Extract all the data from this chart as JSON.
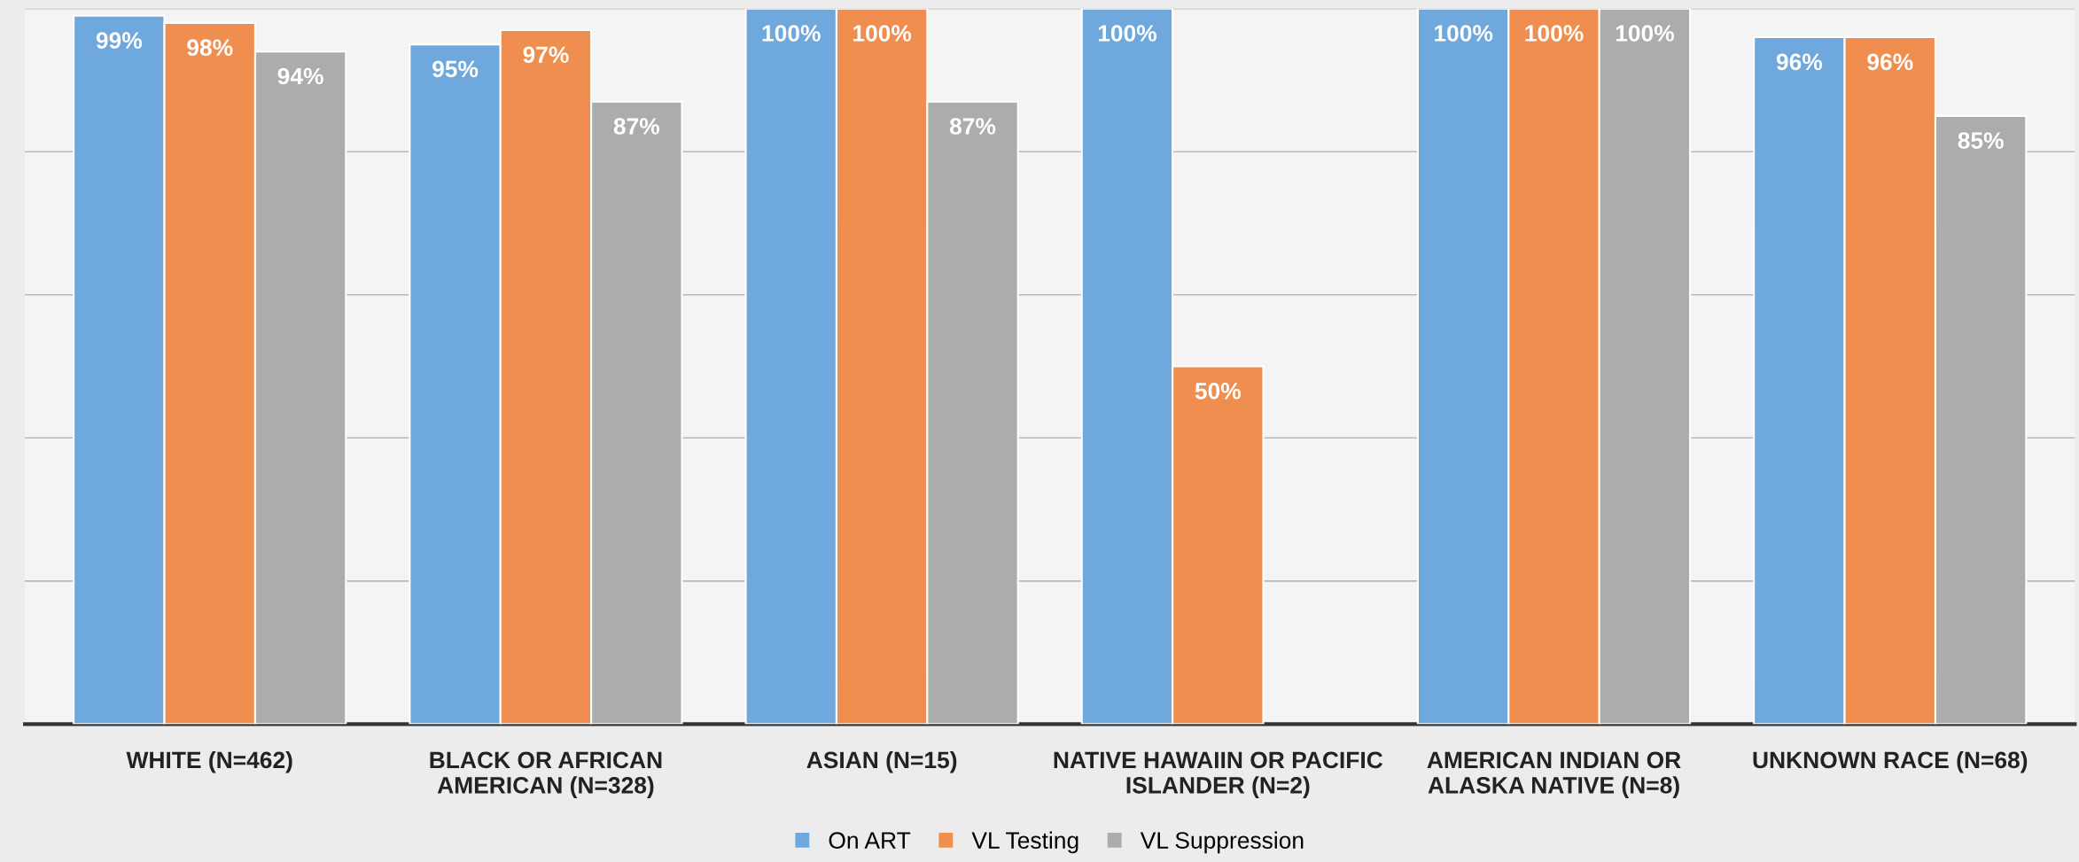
{
  "chart_data": {
    "type": "bar",
    "categories": [
      "WHITE (N=462)",
      "BLACK OR AFRICAN\nAMERICAN (N=328)",
      "ASIAN (N=15)",
      "NATIVE HAWAIIN OR PACIFIC\nISLANDER (N=2)",
      "AMERICAN INDIAN OR\nALASKA NATIVE (N=8)",
      "UNKNOWN RACE (N=68)"
    ],
    "series": [
      {
        "name": "On ART",
        "color": "#6fa8dc",
        "values": [
          99,
          95,
          100,
          100,
          100,
          96
        ],
        "value_labels": [
          "99%",
          "95%",
          "100%",
          "100%",
          "100%",
          "96%"
        ]
      },
      {
        "name": "VL Testing",
        "color": "#ef8e4e",
        "values": [
          98,
          97,
          100,
          50,
          100,
          96
        ],
        "value_labels": [
          "98%",
          "97%",
          "100%",
          "50%",
          "100%",
          "96%"
        ]
      },
      {
        "name": "VL Suppression",
        "color": "#acacac",
        "values": [
          94,
          87,
          87,
          null,
          100,
          85
        ],
        "value_labels": [
          "94%",
          "87%",
          "87%",
          null,
          "100%",
          "85%"
        ]
      }
    ],
    "ylim": [
      0,
      100
    ],
    "yticks": [
      {
        "value": 0,
        "label": null
      },
      {
        "value": 20,
        "label": null
      },
      {
        "value": 40,
        "label": null
      },
      {
        "value": 60,
        "label": null
      },
      {
        "value": 80,
        "label": null
      },
      {
        "value": 100,
        "label": null
      }
    ],
    "grid": "y",
    "legend": "bottom",
    "tick_labels": "x"
  }
}
